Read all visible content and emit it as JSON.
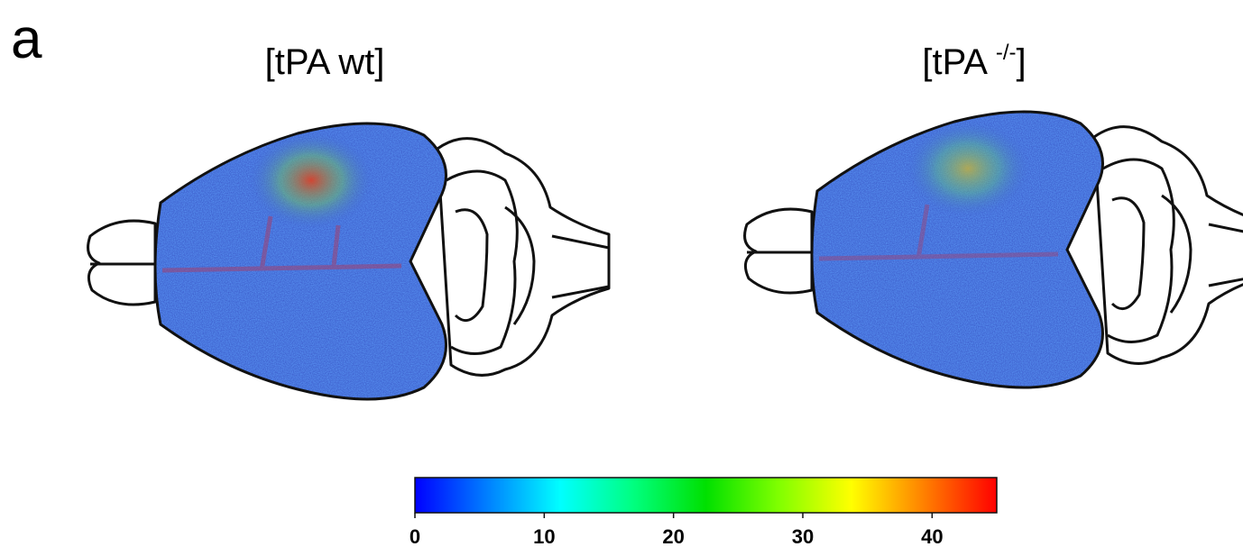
{
  "chart_data": {
    "type": "heatmap",
    "panel_label": "a",
    "panels": [
      {
        "title_prefix": "[tPA wt]",
        "title_superscript": null,
        "title_suffix": null
      },
      {
        "title_prefix": "[tPA ",
        "title_superscript": "-/-",
        "title_suffix": "]"
      }
    ],
    "colorbar": {
      "clim": [
        0,
        45
      ],
      "ticks": [
        0,
        10,
        20,
        30,
        40
      ],
      "colors": [
        "#0000ff",
        "#0080ff",
        "#00ffff",
        "#00ff80",
        "#00e000",
        "#80ff00",
        "#ffff00",
        "#ff8000",
        "#ff0000"
      ]
    }
  }
}
